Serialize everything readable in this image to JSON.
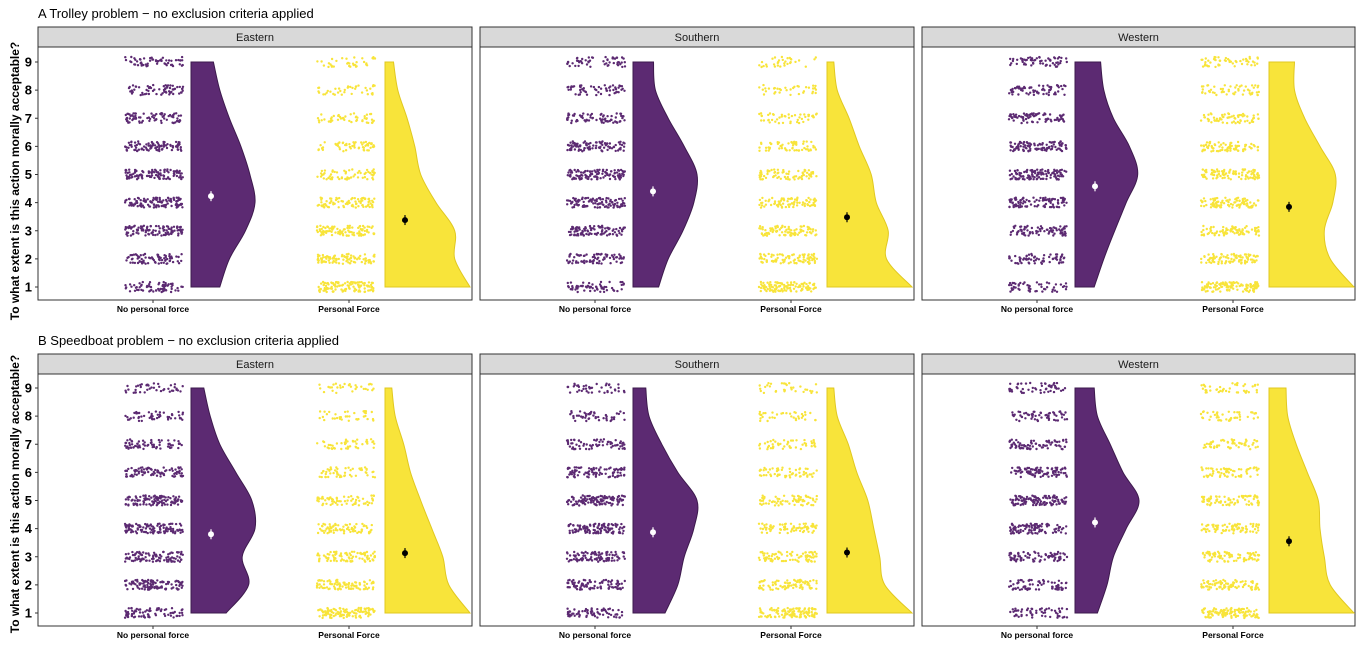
{
  "chart_data": [
    {
      "type": "raincloud",
      "title": "A Trolley problem − no exclusion criteria applied",
      "ylabel": "To what extent is this action morally acceptable?",
      "xlabel": "",
      "ylim": [
        1,
        9
      ],
      "y_ticks": [
        "1",
        "2",
        "3",
        "4",
        "5",
        "6",
        "7",
        "8",
        "9"
      ],
      "categories": [
        "No personal force",
        "Personal Force"
      ],
      "facets": [
        {
          "name": "Eastern",
          "groups": [
            {
              "name": "No personal force",
              "color": "#5c2a72",
              "mean_color": "#ffffff",
              "mean": 4.23,
              "density": [
                0.45,
                0.6,
                0.85,
                1.0,
                0.92,
                0.78,
                0.6,
                0.45,
                0.35
              ]
            },
            {
              "name": "Personal Force",
              "color": "#f8e43a",
              "mean_color": "#000000",
              "mean": 3.38,
              "density": [
                1.0,
                0.82,
                0.82,
                0.6,
                0.42,
                0.35,
                0.26,
                0.15,
                0.1
              ]
            }
          ]
        },
        {
          "name": "Southern",
          "groups": [
            {
              "name": "No personal force",
              "color": "#5c2a72",
              "mean_color": "#ffffff",
              "mean": 4.4,
              "density": [
                0.4,
                0.55,
                0.78,
                0.95,
                1.0,
                0.8,
                0.55,
                0.35,
                0.32
              ]
            },
            {
              "name": "Personal Force",
              "color": "#f8e43a",
              "mean_color": "#000000",
              "mean": 3.48,
              "density": [
                1.0,
                0.7,
                0.72,
                0.58,
                0.52,
                0.38,
                0.26,
                0.12,
                0.08
              ]
            }
          ]
        },
        {
          "name": "Western",
          "groups": [
            {
              "name": "No personal force",
              "color": "#5c2a72",
              "mean_color": "#ffffff",
              "mean": 4.58,
              "density": [
                0.3,
                0.45,
                0.62,
                0.8,
                0.98,
                0.85,
                0.6,
                0.45,
                0.4
              ]
            },
            {
              "name": "Personal Force",
              "color": "#f8e43a",
              "mean_color": "#000000",
              "mean": 3.85,
              "density": [
                1.0,
                0.72,
                0.65,
                0.75,
                0.78,
                0.6,
                0.42,
                0.3,
                0.3
              ]
            }
          ]
        }
      ]
    },
    {
      "type": "raincloud",
      "title": "B Speedboat problem − no exclusion criteria applied",
      "ylabel": "To what extent is this action morally acceptable?",
      "xlabel": "",
      "ylim": [
        1,
        9
      ],
      "y_ticks": [
        "1",
        "2",
        "3",
        "4",
        "5",
        "6",
        "7",
        "8",
        "9"
      ],
      "categories": [
        "No personal force",
        "Personal Force"
      ],
      "facets": [
        {
          "name": "Eastern",
          "groups": [
            {
              "name": "No personal force",
              "color": "#5c2a72",
              "mean_color": "#ffffff",
              "mean": 3.8,
              "density": [
                0.55,
                0.9,
                0.8,
                1.0,
                0.95,
                0.7,
                0.45,
                0.3,
                0.2
              ]
            },
            {
              "name": "Personal Force",
              "color": "#f8e43a",
              "mean_color": "#000000",
              "mean": 3.13,
              "density": [
                1.0,
                0.75,
                0.68,
                0.55,
                0.42,
                0.3,
                0.22,
                0.12,
                0.08
              ]
            }
          ]
        },
        {
          "name": "Southern",
          "groups": [
            {
              "name": "No personal force",
              "color": "#5c2a72",
              "mean_color": "#ffffff",
              "mean": 3.87,
              "density": [
                0.5,
                0.7,
                0.8,
                0.95,
                1.0,
                0.7,
                0.45,
                0.25,
                0.2
              ]
            },
            {
              "name": "Personal Force",
              "color": "#f8e43a",
              "mean_color": "#000000",
              "mean": 3.15,
              "density": [
                1.0,
                0.68,
                0.62,
                0.55,
                0.48,
                0.35,
                0.25,
                0.12,
                0.08
              ]
            }
          ]
        },
        {
          "name": "Western",
          "groups": [
            {
              "name": "No personal force",
              "color": "#5c2a72",
              "mean_color": "#ffffff",
              "mean": 4.22,
              "density": [
                0.35,
                0.5,
                0.6,
                0.8,
                1.0,
                0.75,
                0.55,
                0.35,
                0.3
              ]
            },
            {
              "name": "Personal Force",
              "color": "#f8e43a",
              "mean_color": "#000000",
              "mean": 3.55,
              "density": [
                1.0,
                0.72,
                0.65,
                0.6,
                0.58,
                0.45,
                0.32,
                0.22,
                0.2
              ]
            }
          ]
        }
      ]
    }
  ]
}
